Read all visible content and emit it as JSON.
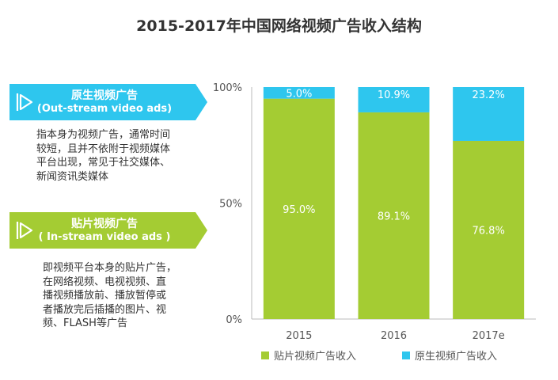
{
  "title": "2015-2017年中国网络视频广告收入结构",
  "panels": {
    "outstream": {
      "title": "原生视频广告",
      "subtitle": "(Out-stream video ads)",
      "desc": [
        "指本身为视频广告，通常时间",
        "较短，且并不依附于视频媒体",
        "平台出现，常见于社交媒体、",
        "新闻资讯类媒体"
      ]
    },
    "instream": {
      "title": "贴片视频广告",
      "subtitle": "( In-stream video ads )",
      "desc": [
        "即视频平台本身的贴片广告，",
        "在网络视频、电视视频、直",
        "播视频播放前、播放暂停或",
        "者播放完后插播的图片、视",
        "频、FLASH等广告"
      ]
    }
  },
  "chart_data": {
    "type": "bar",
    "stacked": true,
    "categories": [
      "2015",
      "2016",
      "2017e"
    ],
    "series": [
      {
        "name": "贴片视频广告收入",
        "values": [
          95.0,
          89.1,
          76.8
        ],
        "labels": [
          "95.0%",
          "89.1%",
          "76.8%"
        ],
        "color": "#a4cc33"
      },
      {
        "name": "原生视频广告收入",
        "values": [
          5.0,
          10.9,
          23.2
        ],
        "labels": [
          "5.0%",
          "10.9%",
          "23.2%"
        ],
        "color": "#2ec6ee"
      }
    ],
    "yticks": [
      "100%",
      "50%",
      "0%"
    ],
    "ylim": [
      0,
      100
    ],
    "legend_position": "bottom"
  }
}
